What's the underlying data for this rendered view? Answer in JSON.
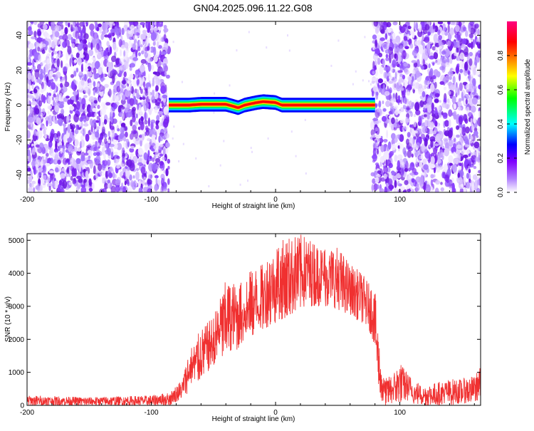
{
  "title": "GN04.2025.096.11.22.G08",
  "chart_data": [
    {
      "type": "heatmap",
      "xlabel": "Height of straight line (km)",
      "ylabel": "Frequency (Hz)",
      "xlim": [
        -200,
        165
      ],
      "ylim": [
        -50,
        48
      ],
      "x_ticks": [
        -200,
        -100,
        0,
        100
      ],
      "y_ticks": [
        -40,
        -20,
        0,
        20,
        40
      ],
      "colorbar": {
        "label": "Normalized spectral amplitude",
        "range": [
          0,
          1
        ],
        "ticks": [
          0.0,
          0.2,
          0.4,
          0.6,
          0.8
        ],
        "colors": [
          "#ffffff",
          "#8000ff",
          "#0000ff",
          "#00ffff",
          "#00ff00",
          "#ffff00",
          "#ff8000",
          "#ff0000",
          "#ff0080"
        ]
      },
      "noise_regions_km": [
        [
          -200,
          -86
        ],
        [
          78,
          165
        ]
      ],
      "signal_band": {
        "x": [
          -86,
          -70,
          -60,
          -40,
          -30,
          -25,
          -15,
          -10,
          0,
          5,
          20,
          40,
          60,
          80
        ],
        "freq_hz": [
          0,
          0,
          0.5,
          0.5,
          -1.5,
          0,
          1.5,
          2,
          1.5,
          0,
          0,
          0,
          0,
          0
        ]
      }
    },
    {
      "type": "line",
      "xlabel": "Height of straight line (km)",
      "ylabel": "SNR (10 * v/v)",
      "xlim": [
        -200,
        165
      ],
      "ylim": [
        0,
        5200
      ],
      "x_ticks": [
        -200,
        -100,
        0,
        100
      ],
      "y_ticks": [
        0,
        1000,
        2000,
        3000,
        4000,
        5000
      ],
      "series_color": "#f03030",
      "envelope": {
        "x": [
          -200,
          -150,
          -100,
          -85,
          -80,
          -75,
          -70,
          -60,
          -50,
          -40,
          -30,
          -20,
          -10,
          0,
          10,
          20,
          25,
          30,
          40,
          50,
          60,
          70,
          75,
          80,
          82,
          85,
          88,
          95,
          100,
          105,
          110,
          120,
          130,
          140,
          150,
          160,
          165
        ],
        "lower": [
          0,
          0,
          0,
          0,
          100,
          150,
          400,
          800,
          1200,
          1500,
          1700,
          2000,
          2300,
          2500,
          2700,
          2900,
          3000,
          3000,
          3000,
          2900,
          2700,
          2500,
          2300,
          1800,
          800,
          100,
          0,
          50,
          100,
          100,
          50,
          0,
          0,
          0,
          50,
          100,
          200
        ],
        "upper": [
          300,
          250,
          300,
          400,
          600,
          800,
          1700,
          2300,
          2700,
          3800,
          3700,
          4100,
          4300,
          4900,
          5100,
          5200,
          5100,
          5000,
          4900,
          4800,
          4300,
          4000,
          3700,
          3500,
          2500,
          1200,
          800,
          1000,
          1300,
          1100,
          800,
          600,
          700,
          800,
          800,
          900,
          1200
        ]
      }
    }
  ]
}
